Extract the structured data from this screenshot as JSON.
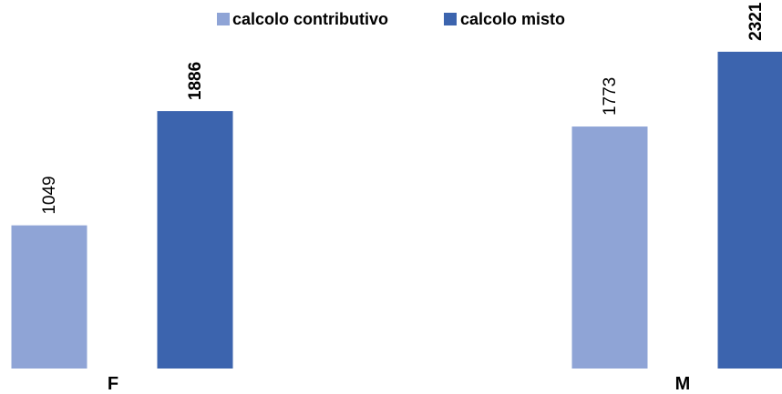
{
  "chart_data": {
    "type": "bar",
    "categories": [
      "F",
      "M"
    ],
    "series": [
      {
        "name": "calcolo contributivo",
        "values": [
          1049,
          1773
        ],
        "color": "#8FA4D6",
        "label_weight": "normal"
      },
      {
        "name": "calcolo misto",
        "values": [
          1886,
          2321
        ],
        "color": "#3C64AE",
        "label_weight": "bold"
      }
    ],
    "title": "",
    "xlabel": "",
    "ylabel": "",
    "ylim": [
      0,
      2700
    ],
    "grid": false,
    "legend": "top-center"
  }
}
